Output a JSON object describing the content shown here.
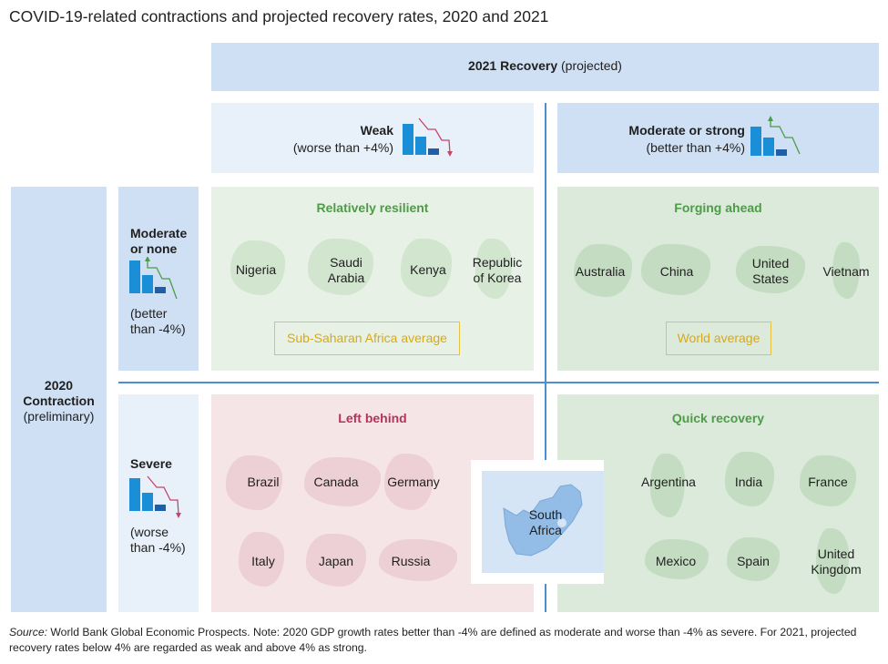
{
  "title": "COVID-19-related contractions and projected recovery rates, 2020 and 2021",
  "recovery_header": {
    "bold": "2021 Recovery",
    "rest": " (projected)"
  },
  "columns": {
    "weak": {
      "label": "Weak",
      "sub": "(worse than +4%)"
    },
    "strong": {
      "label": "Moderate or strong",
      "sub": "(better than +4%)"
    }
  },
  "contraction": {
    "line1": "2020",
    "line2": "Contraction",
    "line3": "(preliminary)"
  },
  "rows": {
    "moderate": {
      "line1": "Moderate",
      "line2": "or none",
      "sub1": "(better",
      "sub2": "than -4%)"
    },
    "severe": {
      "line1": "Severe",
      "sub1": "(worse",
      "sub2": "than -4%)"
    }
  },
  "quadrants": {
    "resilient": {
      "title": "Relatively resilient",
      "countries": [
        "Nigeria",
        "Saudi Arabia",
        "Kenya",
        "Republic of Korea"
      ],
      "average": "Sub-Saharan Africa average"
    },
    "forging": {
      "title": "Forging ahead",
      "countries": [
        "Australia",
        "China",
        "United States",
        "Vietnam"
      ],
      "average": "World average"
    },
    "behind": {
      "title": "Left behind",
      "countries": [
        "Brazil",
        "Canada",
        "Germany",
        "Italy",
        "Japan",
        "Russia"
      ]
    },
    "quick": {
      "title": "Quick recovery",
      "countries": [
        "Argentina",
        "India",
        "France",
        "Mexico",
        "Spain",
        "United Kingdom"
      ]
    }
  },
  "special": {
    "line1": "South",
    "line2": "Africa"
  },
  "labels": {
    "saudi_1": "Saudi",
    "saudi_2": "Arabia",
    "korea_1": "Republic",
    "korea_2": "of Korea",
    "us_1": "United",
    "us_2": "States",
    "uk_1": "United",
    "uk_2": "Kingdom"
  },
  "source": {
    "label": "Source:",
    "text": " World Bank Global Economic Prospects. Note: 2020 GDP growth rates better than -4% are defined as moderate and worse than -4% as severe. For 2021, projected recovery rates below 4% are regarded as weak and above 4% as strong."
  },
  "colors": {
    "blue_accent": "#4a90d0",
    "green_title": "#4e9b48",
    "red_title": "#b5335c",
    "average_gold": "#e8c23c"
  }
}
